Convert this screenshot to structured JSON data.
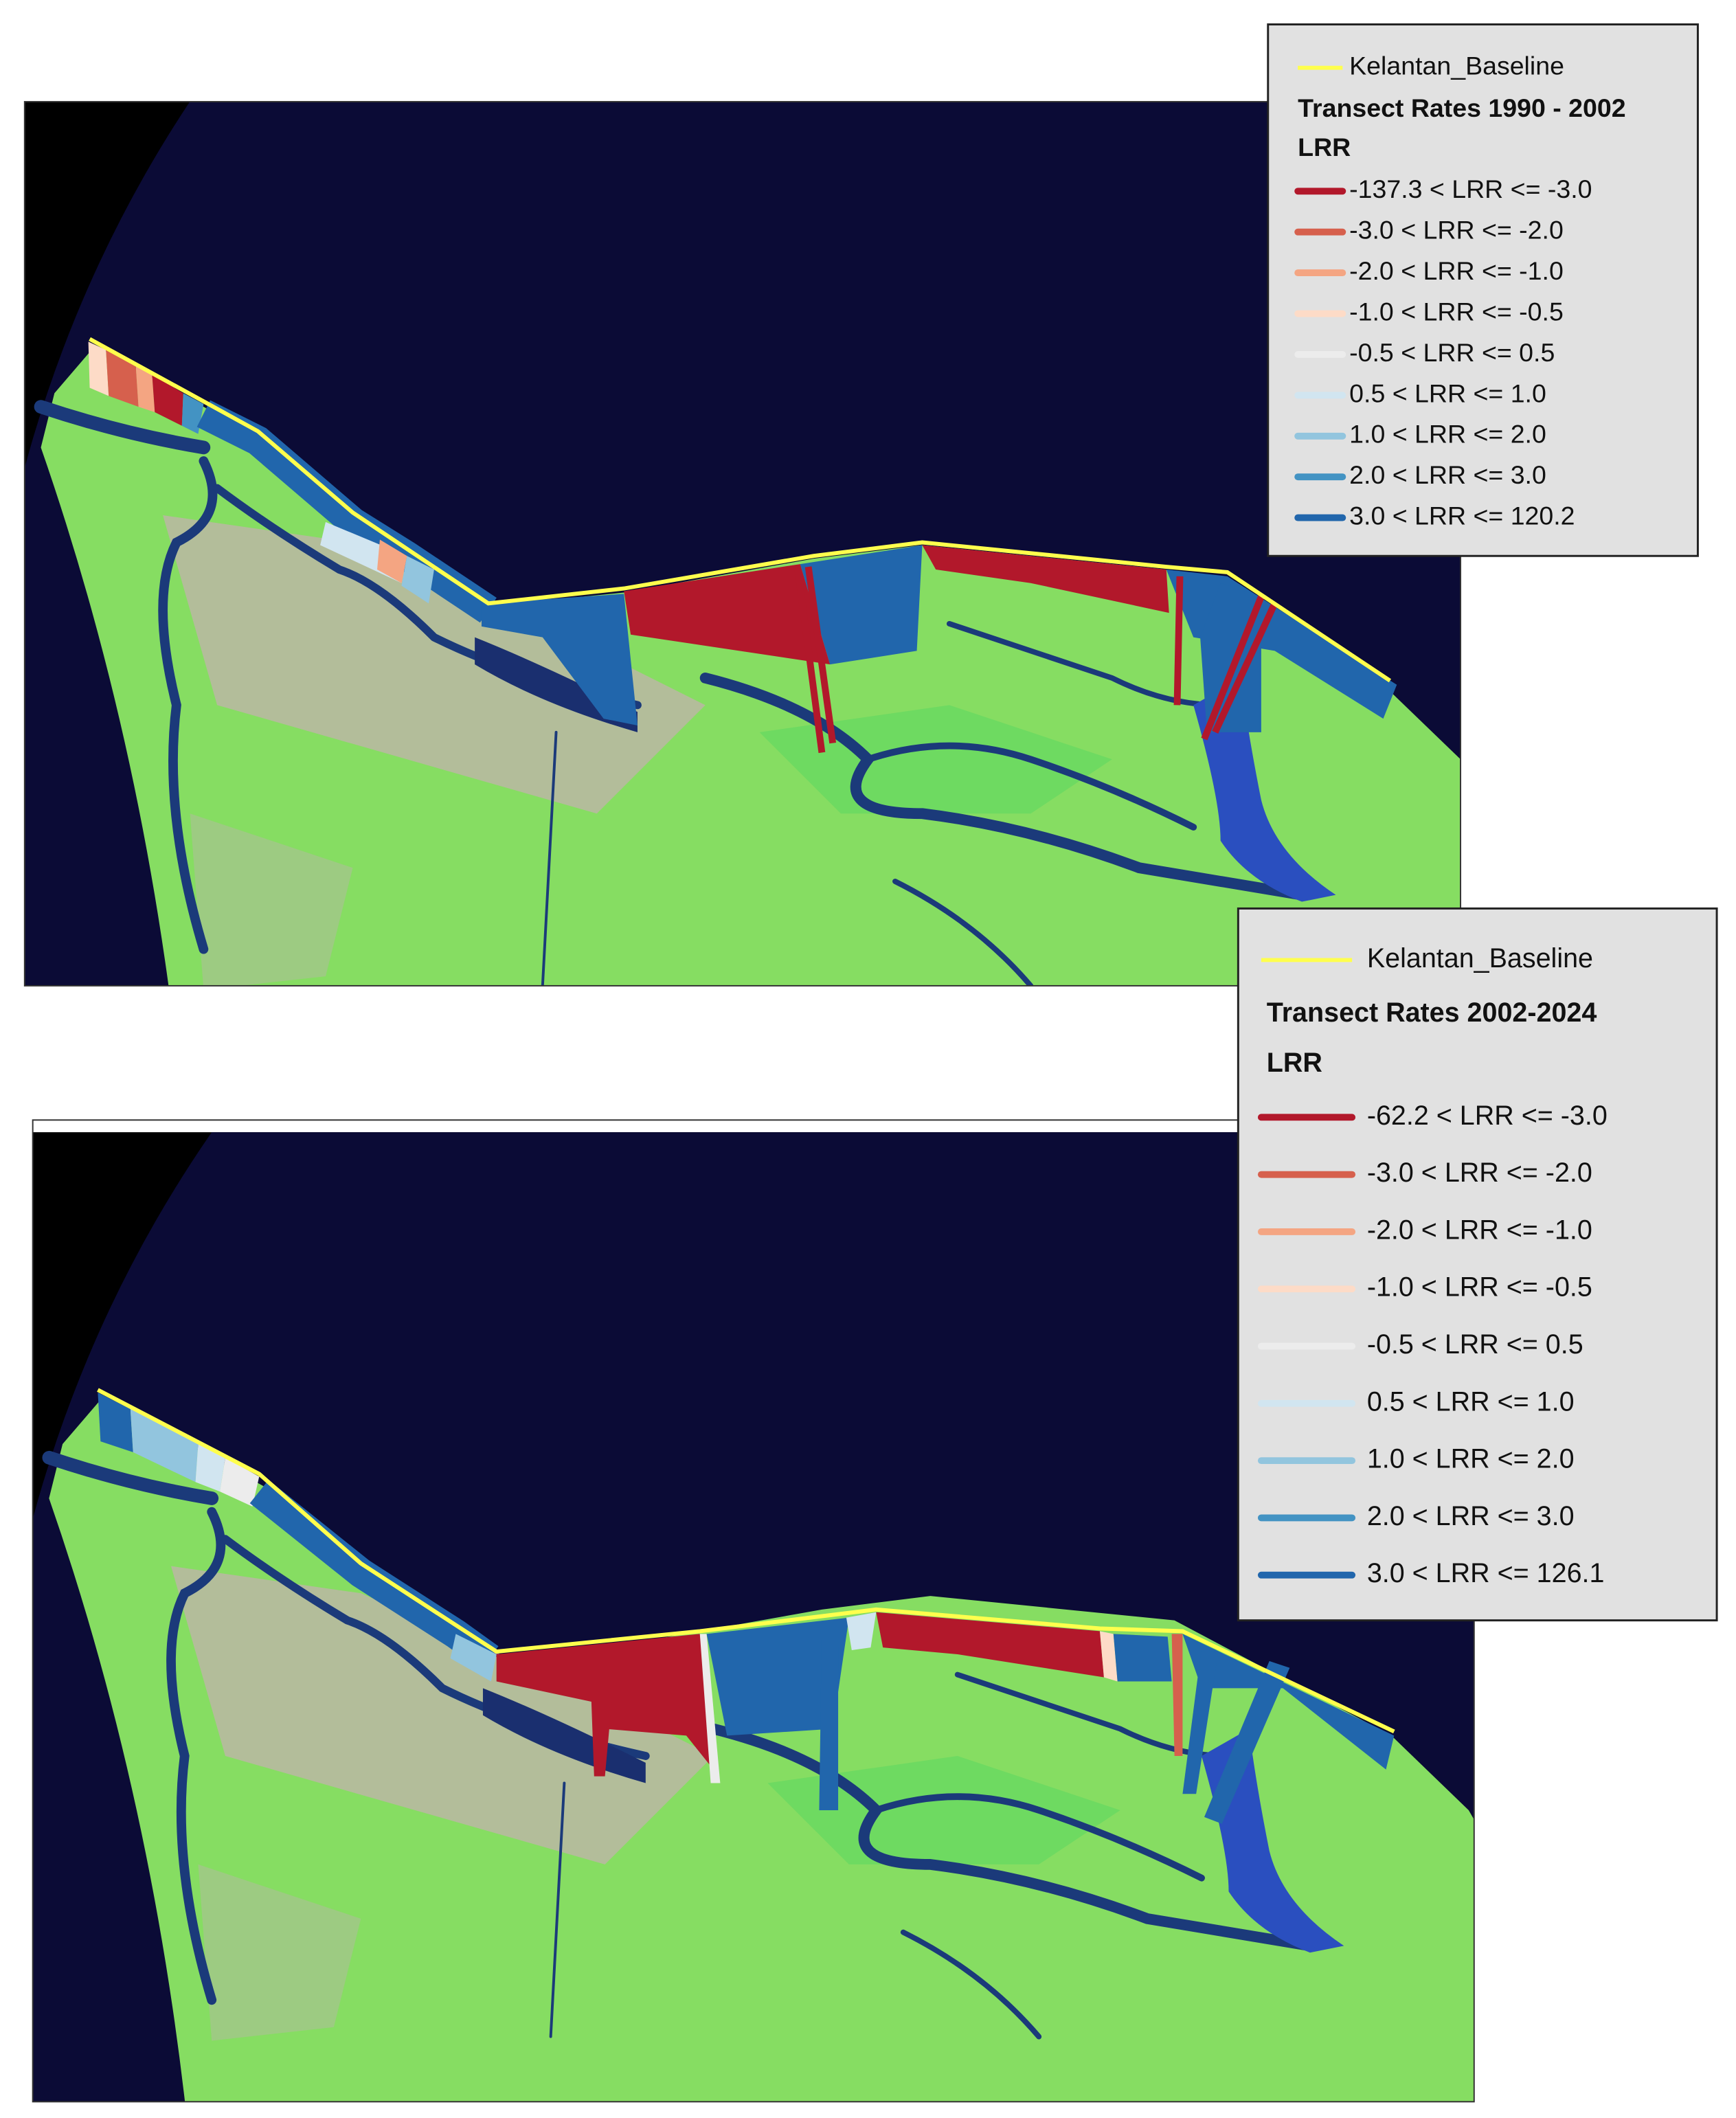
{
  "panels": [
    {
      "legend": {
        "baseline": "Kelantan_Baseline",
        "baseline_color": "#ffff4d",
        "title": "Transect Rates 1990 - 2002",
        "field": "LRR",
        "classes": [
          {
            "label": "-137.3 < LRR <= -3.0",
            "color": "#b2182b"
          },
          {
            "label": "-3.0 < LRR <= -2.0",
            "color": "#d6604d"
          },
          {
            "label": "-2.0 < LRR <= -1.0",
            "color": "#f4a582"
          },
          {
            "label": "-1.0 < LRR <= -0.5",
            "color": "#fddbc7"
          },
          {
            "label": "-0.5 < LRR <= 0.5",
            "color": "#ececec"
          },
          {
            "label": "0.5 < LRR <= 1.0",
            "color": "#d1e5f0"
          },
          {
            "label": "1.0 < LRR <= 2.0",
            "color": "#92c5de"
          },
          {
            "label": "2.0 < LRR <= 3.0",
            "color": "#4393c3"
          },
          {
            "label": "3.0 < LRR <= 120.2",
            "color": "#2166ac"
          }
        ]
      }
    },
    {
      "legend": {
        "baseline": "Kelantan_Baseline",
        "baseline_color": "#ffff4d",
        "title": "Transect Rates 2002-2024",
        "field": "LRR",
        "classes": [
          {
            "label": "-62.2 < LRR <= -3.0",
            "color": "#b2182b"
          },
          {
            "label": "-3.0 < LRR <= -2.0",
            "color": "#d6604d"
          },
          {
            "label": "-2.0 < LRR <= -1.0",
            "color": "#f4a582"
          },
          {
            "label": "-1.0 < LRR <= -0.5",
            "color": "#fddbc7"
          },
          {
            "label": "-0.5 < LRR <= 0.5",
            "color": "#ececec"
          },
          {
            "label": "0.5 < LRR <= 1.0",
            "color": "#d1e5f0"
          },
          {
            "label": "1.0 < LRR <= 2.0",
            "color": "#92c5de"
          },
          {
            "label": "2.0 < LRR <= 3.0",
            "color": "#4393c3"
          },
          {
            "label": "3.0 < LRR <= 126.1",
            "color": "#2166ac"
          }
        ]
      }
    }
  ]
}
